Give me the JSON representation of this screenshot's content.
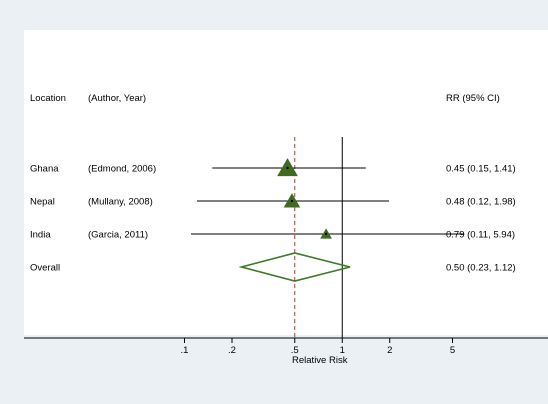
{
  "chart_data": {
    "type": "forest",
    "headers": {
      "location": "Location",
      "study": "(Author, Year)",
      "effect": "RR (95% CI)"
    },
    "studies": [
      {
        "location": "Ghana",
        "study": "(Edmond, 2006)",
        "rr": 0.45,
        "lo": 0.15,
        "hi": 1.41,
        "ci_text": "0.45 (0.15, 1.41)",
        "weight": 1.0
      },
      {
        "location": "Nepal",
        "study": "(Mullany, 2008)",
        "rr": 0.48,
        "lo": 0.12,
        "hi": 1.98,
        "ci_text": "0.48 (0.12, 1.98)",
        "weight": 0.7
      },
      {
        "location": "India",
        "study": "(Garcia, 2011)",
        "rr": 0.79,
        "lo": 0.11,
        "hi": 5.94,
        "ci_text": "0.79 (0.11, 5.94)",
        "weight": 0.35
      }
    ],
    "overall": {
      "location": "Overall",
      "rr": 0.5,
      "lo": 0.23,
      "hi": 1.12,
      "ci_text": "0.50 (0.23, 1.12)"
    },
    "xlabel": "Relative Risk",
    "x_scale": "log",
    "x_ticks": [
      {
        "value": 0.1,
        "label": ".1"
      },
      {
        "value": 0.2,
        "label": ".2"
      },
      {
        "value": 0.5,
        "label": ".5"
      },
      {
        "value": 1,
        "label": "1"
      },
      {
        "value": 2,
        "label": "2"
      },
      {
        "value": 5,
        "label": "5"
      }
    ],
    "xlim": [
      0.065,
      6
    ],
    "null_line": 1,
    "pooled_line": 0.5,
    "colors": {
      "background": "#eaf0f4",
      "panel": "#ffffff",
      "marker": "#3f6a1f",
      "diamond": "#3a7a22",
      "pooled_line": "#c0392b",
      "ink": "#000000"
    }
  }
}
